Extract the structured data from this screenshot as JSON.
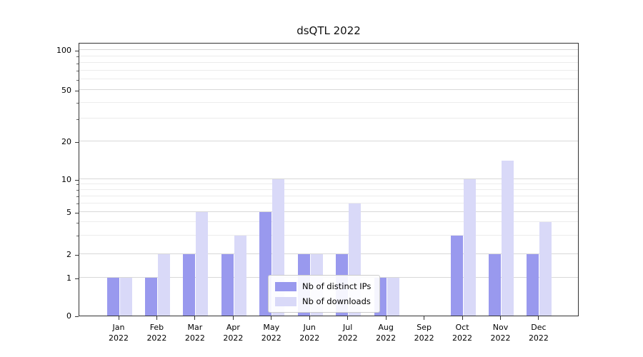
{
  "title": "dsQTL 2022",
  "chart_data": {
    "type": "bar",
    "title": "dsQTL 2022",
    "categories": [
      "Jan 2022",
      "Feb 2022",
      "Mar 2022",
      "Apr 2022",
      "May 2022",
      "Jun 2022",
      "Jul 2022",
      "Aug 2022",
      "Sep 2022",
      "Oct 2022",
      "Nov 2022",
      "Dec 2022"
    ],
    "series": [
      {
        "name": "Nb of distinct IPs",
        "color": "#9999ee",
        "values": [
          1,
          1,
          2,
          2,
          5,
          2,
          2,
          1,
          0,
          3,
          2,
          2
        ]
      },
      {
        "name": "Nb of downloads",
        "color": "#d9d9f8",
        "values": [
          1,
          2,
          5,
          3,
          10,
          2,
          6,
          1,
          0,
          10,
          14,
          4
        ]
      }
    ],
    "y_axis": {
      "scale": "symlog",
      "ticks": [
        0,
        1,
        2,
        5,
        10,
        20,
        50,
        100
      ],
      "minor_ticks": [
        3,
        4,
        6,
        7,
        8,
        9,
        30,
        40,
        60,
        70,
        80,
        90
      ],
      "ylim": [
        0,
        115
      ]
    },
    "legend": {
      "position": "lower center"
    },
    "grid": true
  }
}
